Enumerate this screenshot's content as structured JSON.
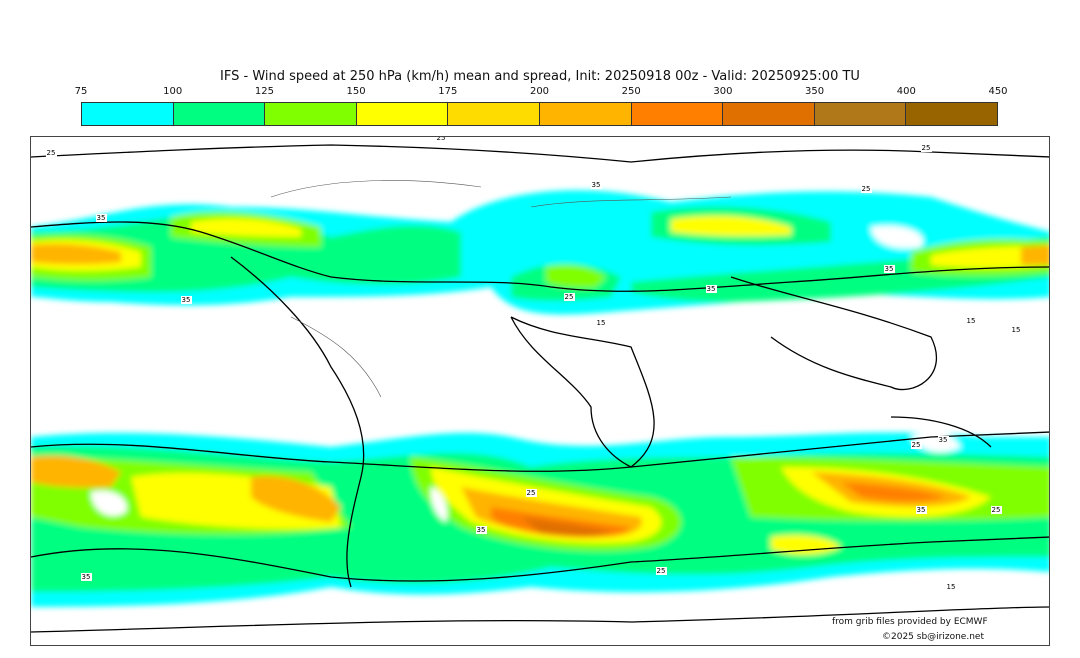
{
  "title": "IFS - Wind speed at 250 hPa (km/h) mean and spread, Init: 20250918 00z - Valid: 20250925:00 TU",
  "colorbar": {
    "ticks": [
      "75",
      "100",
      "125",
      "150",
      "175",
      "200",
      "250",
      "300",
      "350",
      "400",
      "450"
    ],
    "colors": [
      "#00ffff",
      "#00ff80",
      "#80ff00",
      "#ffff00",
      "#ffdc00",
      "#ffb400",
      "#ff8000",
      "#e07000",
      "#b07818",
      "#986400"
    ]
  },
  "contour_labels": [
    "25",
    "25",
    "25",
    "35",
    "35",
    "35",
    "25",
    "35",
    "15",
    "25",
    "15",
    "15",
    "35",
    "25",
    "35",
    "25",
    "35",
    "35",
    "25",
    "15",
    "35",
    "25"
  ],
  "credits": {
    "source": "from grib files provided by ECMWF",
    "copyright": "©2025 sb@irizone.net"
  }
}
